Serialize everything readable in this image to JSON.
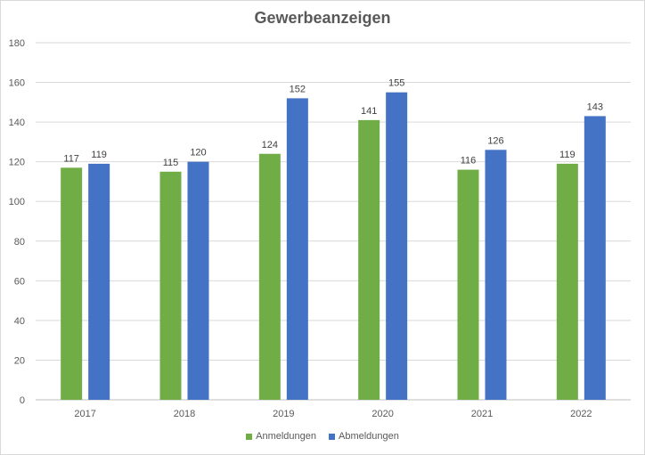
{
  "chart_data": {
    "type": "bar",
    "title": "Gewerbeanzeigen",
    "categories": [
      "2017",
      "2018",
      "2019",
      "2020",
      "2021",
      "2022"
    ],
    "series": [
      {
        "name": "Anmeldungen",
        "color": "#70ad47",
        "values": [
          117,
          115,
          124,
          141,
          116,
          119
        ]
      },
      {
        "name": "Abmeldungen",
        "color": "#4472c4",
        "values": [
          119,
          120,
          152,
          155,
          126,
          143
        ]
      }
    ],
    "ylim": [
      0,
      180
    ],
    "yticks": [
      0,
      20,
      40,
      60,
      80,
      100,
      120,
      140,
      160,
      180
    ],
    "grid": true,
    "legend_position": "bottom",
    "data_labels": true
  }
}
